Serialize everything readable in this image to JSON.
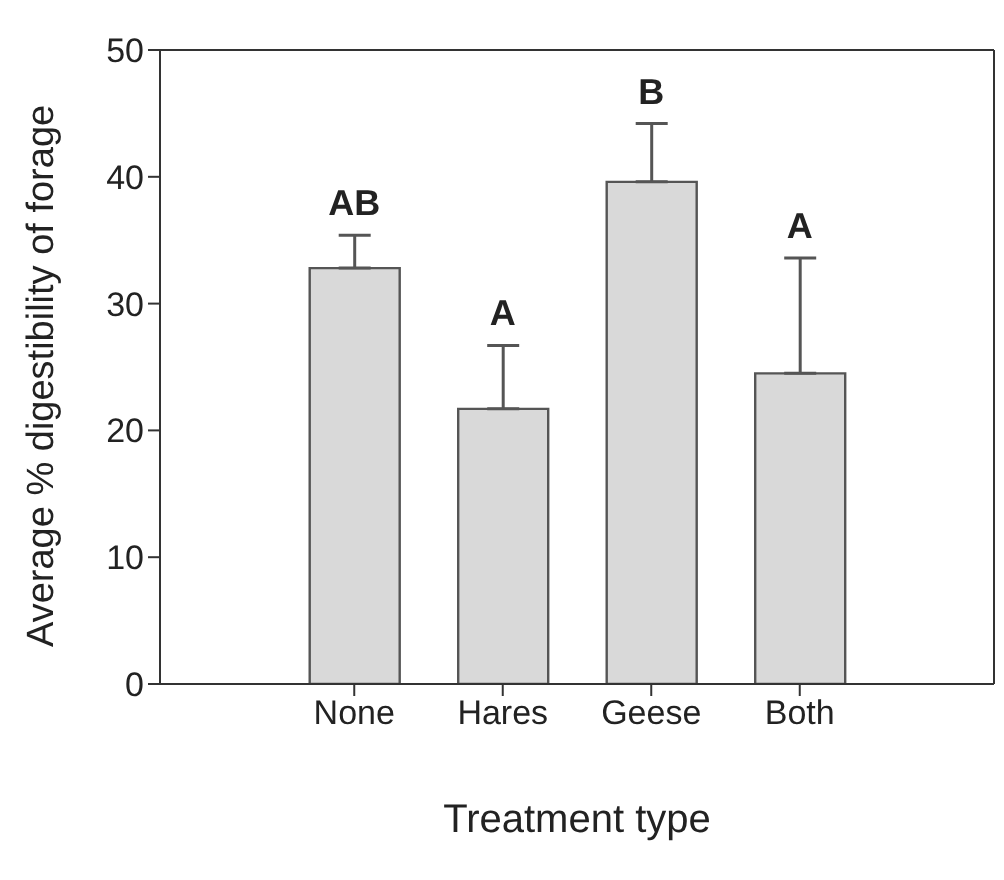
{
  "chart_data": {
    "type": "bar",
    "xlabel": "Treatment type",
    "ylabel": "Average % digestibility of forage",
    "categories": [
      "None",
      "Hares",
      "Geese",
      "Both"
    ],
    "values": [
      32.8,
      21.7,
      39.6,
      24.5
    ],
    "errors": [
      [
        32.8,
        35.4
      ],
      [
        21.7,
        26.7
      ],
      [
        39.6,
        44.2
      ],
      [
        24.5,
        33.6
      ]
    ],
    "color": "#d9d9d9",
    "ylim": [
      0,
      50
    ],
    "yticks": [
      0,
      10,
      20,
      30,
      40,
      50
    ],
    "grid": false,
    "legend": false,
    "annotations": [
      "AB",
      "A",
      "B",
      "A"
    ]
  }
}
